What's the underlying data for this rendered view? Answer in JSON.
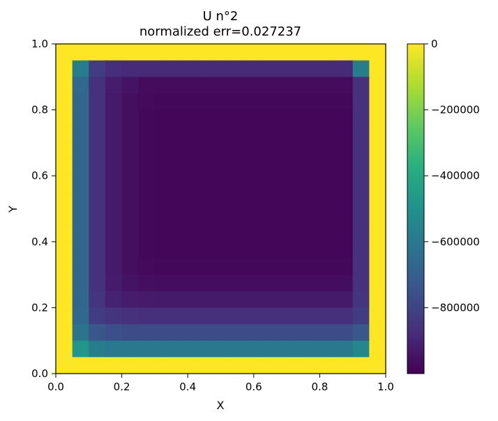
{
  "chart_data": {
    "type": "heatmap",
    "title": "U n°2",
    "subtitle": "normalized err=0.027237",
    "xlabel": "X",
    "ylabel": "Y",
    "xlim": [
      0.0,
      1.0
    ],
    "ylim": [
      0.0,
      1.0
    ],
    "x_ticks": [
      "0.0",
      "0.2",
      "0.4",
      "0.6",
      "0.8",
      "1.0"
    ],
    "y_ticks": [
      "0.0",
      "0.2",
      "0.4",
      "0.6",
      "0.8",
      "1.0"
    ],
    "grid": false,
    "colormap": "viridis",
    "color_range": [
      -1000000,
      0
    ],
    "colorbar_ticks": [
      {
        "value": 0,
        "label": "0"
      },
      {
        "value": -200000,
        "label": "−200000"
      },
      {
        "value": -400000,
        "label": "−400000"
      },
      {
        "value": -600000,
        "label": "−600000"
      },
      {
        "value": -800000,
        "label": "−800000"
      }
    ],
    "cell_size": 0.05,
    "rows_top_to_bottom": [
      [
        0,
        0,
        0,
        0,
        0,
        0,
        0,
        0,
        0,
        0,
        0,
        0,
        0,
        0,
        0,
        0,
        0,
        0,
        0,
        0
      ],
      [
        0,
        -580000,
        -820000,
        -870000,
        -880000,
        -880000,
        -880000,
        -880000,
        -880000,
        -880000,
        -880000,
        -880000,
        -880000,
        -880000,
        -880000,
        -880000,
        -880000,
        -880000,
        -580000,
        0
      ],
      [
        0,
        -660000,
        -860000,
        -920000,
        -950000,
        -970000,
        -970000,
        -970000,
        -970000,
        -970000,
        -970000,
        -970000,
        -970000,
        -970000,
        -970000,
        -970000,
        -970000,
        -970000,
        -860000,
        0
      ],
      [
        0,
        -670000,
        -860000,
        -930000,
        -960000,
        -975000,
        -980000,
        -980000,
        -980000,
        -980000,
        -980000,
        -980000,
        -980000,
        -980000,
        -980000,
        -980000,
        -980000,
        -980000,
        -860000,
        0
      ],
      [
        0,
        -670000,
        -860000,
        -930000,
        -960000,
        -980000,
        -985000,
        -985000,
        -985000,
        -985000,
        -985000,
        -985000,
        -985000,
        -985000,
        -985000,
        -985000,
        -985000,
        -985000,
        -860000,
        0
      ],
      [
        0,
        -670000,
        -860000,
        -930000,
        -960000,
        -980000,
        -985000,
        -985000,
        -985000,
        -985000,
        -985000,
        -985000,
        -985000,
        -985000,
        -985000,
        -985000,
        -985000,
        -985000,
        -860000,
        0
      ],
      [
        0,
        -670000,
        -860000,
        -930000,
        -960000,
        -980000,
        -985000,
        -985000,
        -985000,
        -985000,
        -985000,
        -985000,
        -985000,
        -985000,
        -985000,
        -985000,
        -985000,
        -985000,
        -860000,
        0
      ],
      [
        0,
        -670000,
        -860000,
        -930000,
        -960000,
        -980000,
        -985000,
        -985000,
        -985000,
        -985000,
        -985000,
        -985000,
        -985000,
        -985000,
        -985000,
        -985000,
        -985000,
        -985000,
        -860000,
        0
      ],
      [
        0,
        -670000,
        -860000,
        -930000,
        -960000,
        -980000,
        -985000,
        -985000,
        -985000,
        -985000,
        -985000,
        -985000,
        -985000,
        -985000,
        -985000,
        -985000,
        -985000,
        -985000,
        -860000,
        0
      ],
      [
        0,
        -670000,
        -860000,
        -930000,
        -960000,
        -980000,
        -985000,
        -985000,
        -985000,
        -985000,
        -985000,
        -985000,
        -985000,
        -985000,
        -985000,
        -985000,
        -985000,
        -985000,
        -860000,
        0
      ],
      [
        0,
        -670000,
        -860000,
        -930000,
        -960000,
        -980000,
        -985000,
        -985000,
        -985000,
        -985000,
        -985000,
        -985000,
        -985000,
        -985000,
        -985000,
        -985000,
        -985000,
        -985000,
        -860000,
        0
      ],
      [
        0,
        -670000,
        -860000,
        -930000,
        -960000,
        -980000,
        -985000,
        -985000,
        -985000,
        -985000,
        -985000,
        -985000,
        -985000,
        -985000,
        -985000,
        -985000,
        -985000,
        -985000,
        -860000,
        0
      ],
      [
        0,
        -670000,
        -860000,
        -930000,
        -960000,
        -980000,
        -985000,
        -985000,
        -985000,
        -985000,
        -985000,
        -985000,
        -985000,
        -985000,
        -985000,
        -985000,
        -985000,
        -985000,
        -860000,
        0
      ],
      [
        0,
        -670000,
        -860000,
        -930000,
        -960000,
        -975000,
        -980000,
        -980000,
        -980000,
        -980000,
        -980000,
        -980000,
        -980000,
        -980000,
        -980000,
        -980000,
        -980000,
        -980000,
        -860000,
        0
      ],
      [
        0,
        -670000,
        -860000,
        -925000,
        -950000,
        -960000,
        -965000,
        -965000,
        -965000,
        -965000,
        -965000,
        -965000,
        -965000,
        -965000,
        -965000,
        -965000,
        -965000,
        -965000,
        -860000,
        0
      ],
      [
        0,
        -670000,
        -850000,
        -905000,
        -920000,
        -925000,
        -930000,
        -930000,
        -930000,
        -930000,
        -930000,
        -930000,
        -930000,
        -930000,
        -930000,
        -930000,
        -930000,
        -930000,
        -850000,
        0
      ],
      [
        0,
        -660000,
        -820000,
        -850000,
        -860000,
        -865000,
        -865000,
        -865000,
        -865000,
        -865000,
        -865000,
        -865000,
        -865000,
        -865000,
        -865000,
        -865000,
        -865000,
        -865000,
        -820000,
        0
      ],
      [
        0,
        -620000,
        -730000,
        -760000,
        -770000,
        -770000,
        -770000,
        -770000,
        -770000,
        -770000,
        -770000,
        -770000,
        -770000,
        -770000,
        -770000,
        -770000,
        -770000,
        -770000,
        -730000,
        0
      ],
      [
        0,
        -480000,
        -580000,
        -600000,
        -600000,
        -600000,
        -600000,
        -600000,
        -600000,
        -600000,
        -600000,
        -600000,
        -600000,
        -600000,
        -600000,
        -600000,
        -600000,
        -600000,
        -540000,
        0
      ],
      [
        0,
        0,
        0,
        0,
        0,
        0,
        0,
        0,
        0,
        0,
        0,
        0,
        0,
        0,
        0,
        0,
        0,
        0,
        0,
        0
      ]
    ]
  }
}
